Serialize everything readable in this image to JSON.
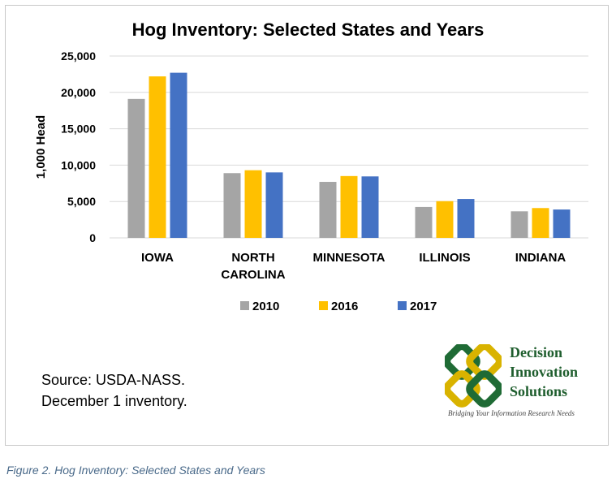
{
  "chart_data": {
    "type": "bar",
    "title": "Hog Inventory: Selected States and Years",
    "ylabel": "1,000 Head",
    "xlabel": "",
    "ylim": [
      0,
      25000
    ],
    "yticks": [
      0,
      5000,
      10000,
      15000,
      20000,
      25000
    ],
    "ytick_labels": [
      "0",
      "5,000",
      "10,000",
      "15,000",
      "20,000",
      "25,000"
    ],
    "categories": [
      [
        "IOWA"
      ],
      [
        "NORTH",
        "CAROLINA"
      ],
      [
        "MINNESOTA"
      ],
      [
        "ILLINOIS"
      ],
      [
        "INDIANA"
      ]
    ],
    "series": [
      {
        "name": "2010",
        "color": "#a5a5a5",
        "values": [
          19100,
          8900,
          7700,
          4250,
          3650
        ]
      },
      {
        "name": "2016",
        "color": "#ffc000",
        "values": [
          22200,
          9300,
          8500,
          5050,
          4100
        ]
      },
      {
        "name": "2017",
        "color": "#4472c4",
        "values": [
          22700,
          9000,
          8450,
          5350,
          3900
        ]
      }
    ],
    "grid": true,
    "legend": "bottom"
  },
  "source": {
    "line1": "Source: USDA-NASS.",
    "line2": "December  1 inventory."
  },
  "logo": {
    "line1": "Decision",
    "line2": "Innovation",
    "line3": "Solutions",
    "tagline": "Bridging Your Information Research Needs"
  },
  "caption": "Figure 2. Hog Inventory: Selected States and Years"
}
